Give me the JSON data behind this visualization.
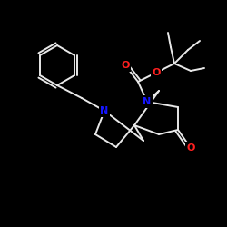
{
  "background": "#000000",
  "bond_color": "#e8e8e8",
  "N_color": "#1515ff",
  "O_color": "#ff2020",
  "lw": 1.4,
  "figsize": [
    2.5,
    2.5
  ],
  "dpi": 100,
  "xlim": [
    0,
    250
  ],
  "ylim": [
    0,
    250
  ]
}
